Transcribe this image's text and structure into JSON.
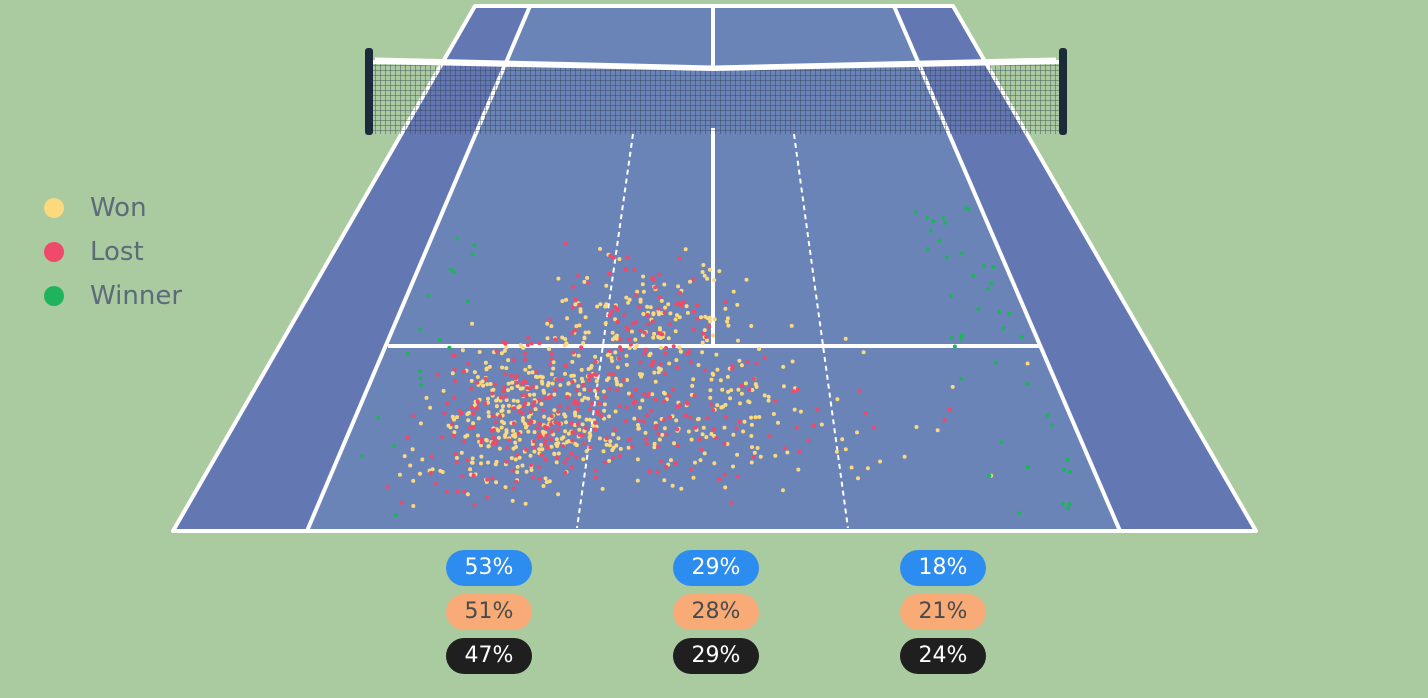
{
  "legend": [
    {
      "label": "Won",
      "color": "#fcd97d"
    },
    {
      "label": "Lost",
      "color": "#f04a6a"
    },
    {
      "label": "Winner",
      "color": "#1fb35d"
    }
  ],
  "colors": {
    "background": "#aacaa0",
    "court": "#6a84b7",
    "alley": "#6378b2",
    "lines": "#ffffff",
    "net_post": "#1c2b3a"
  },
  "chart_data": {
    "type": "scatter",
    "title": "",
    "xlabel": "",
    "ylabel": "",
    "zones": [
      "left",
      "middle",
      "right"
    ],
    "series": [
      {
        "name": "Won",
        "color": "#fcd97d",
        "approx_count": 620
      },
      {
        "name": "Lost",
        "color": "#f04a6a",
        "approx_count": 380
      },
      {
        "name": "Winner",
        "color": "#1fb35d",
        "approx_count": 60
      }
    ],
    "zone_percentages": [
      {
        "color": "#2d8cf0",
        "text_color": "#ffffff",
        "values": [
          "53%",
          "29%",
          "18%"
        ]
      },
      {
        "color": "#f8ab77",
        "text_color": "#4a4a4a",
        "values": [
          "51%",
          "28%",
          "21%"
        ]
      },
      {
        "color": "#1f1f1f",
        "text_color": "#ffffff",
        "values": [
          "47%",
          "29%",
          "24%"
        ]
      }
    ]
  }
}
